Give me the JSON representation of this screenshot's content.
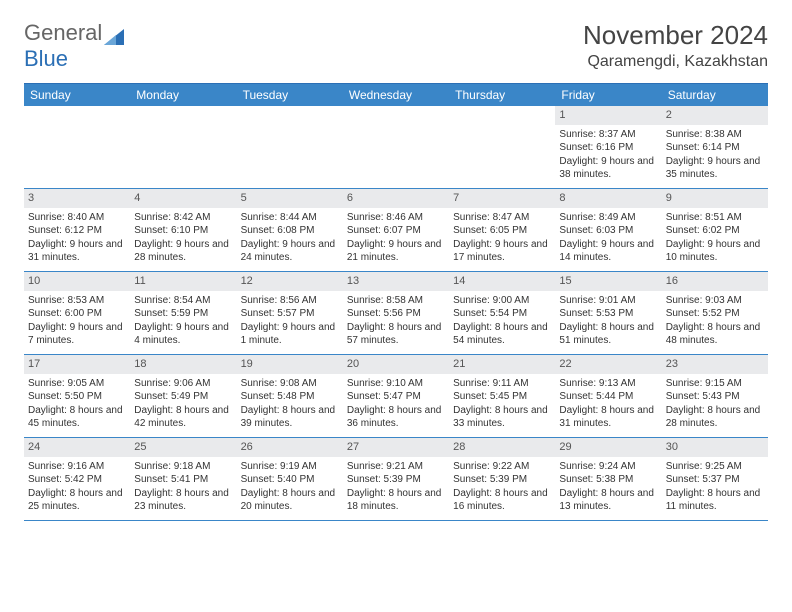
{
  "logo": {
    "part1": "General",
    "part2": "Blue"
  },
  "title": "November 2024",
  "subtitle": "Qaramengdi, Kazakhstan",
  "colors": {
    "header_bg": "#3a86c8",
    "header_text": "#ffffff",
    "border": "#3a86c8",
    "daynum_bg": "#e9eaec",
    "text": "#333333",
    "logo_blue": "#2b6fb5",
    "logo_gray": "#666666",
    "background": "#ffffff"
  },
  "day_headers": [
    "Sunday",
    "Monday",
    "Tuesday",
    "Wednesday",
    "Thursday",
    "Friday",
    "Saturday"
  ],
  "weeks": [
    [
      {},
      {},
      {},
      {},
      {},
      {
        "n": "1",
        "sr": "8:37 AM",
        "ss": "6:16 PM",
        "dl": "9 hours and 38 minutes."
      },
      {
        "n": "2",
        "sr": "8:38 AM",
        "ss": "6:14 PM",
        "dl": "9 hours and 35 minutes."
      }
    ],
    [
      {
        "n": "3",
        "sr": "8:40 AM",
        "ss": "6:12 PM",
        "dl": "9 hours and 31 minutes."
      },
      {
        "n": "4",
        "sr": "8:42 AM",
        "ss": "6:10 PM",
        "dl": "9 hours and 28 minutes."
      },
      {
        "n": "5",
        "sr": "8:44 AM",
        "ss": "6:08 PM",
        "dl": "9 hours and 24 minutes."
      },
      {
        "n": "6",
        "sr": "8:46 AM",
        "ss": "6:07 PM",
        "dl": "9 hours and 21 minutes."
      },
      {
        "n": "7",
        "sr": "8:47 AM",
        "ss": "6:05 PM",
        "dl": "9 hours and 17 minutes."
      },
      {
        "n": "8",
        "sr": "8:49 AM",
        "ss": "6:03 PM",
        "dl": "9 hours and 14 minutes."
      },
      {
        "n": "9",
        "sr": "8:51 AM",
        "ss": "6:02 PM",
        "dl": "9 hours and 10 minutes."
      }
    ],
    [
      {
        "n": "10",
        "sr": "8:53 AM",
        "ss": "6:00 PM",
        "dl": "9 hours and 7 minutes."
      },
      {
        "n": "11",
        "sr": "8:54 AM",
        "ss": "5:59 PM",
        "dl": "9 hours and 4 minutes."
      },
      {
        "n": "12",
        "sr": "8:56 AM",
        "ss": "5:57 PM",
        "dl": "9 hours and 1 minute."
      },
      {
        "n": "13",
        "sr": "8:58 AM",
        "ss": "5:56 PM",
        "dl": "8 hours and 57 minutes."
      },
      {
        "n": "14",
        "sr": "9:00 AM",
        "ss": "5:54 PM",
        "dl": "8 hours and 54 minutes."
      },
      {
        "n": "15",
        "sr": "9:01 AM",
        "ss": "5:53 PM",
        "dl": "8 hours and 51 minutes."
      },
      {
        "n": "16",
        "sr": "9:03 AM",
        "ss": "5:52 PM",
        "dl": "8 hours and 48 minutes."
      }
    ],
    [
      {
        "n": "17",
        "sr": "9:05 AM",
        "ss": "5:50 PM",
        "dl": "8 hours and 45 minutes."
      },
      {
        "n": "18",
        "sr": "9:06 AM",
        "ss": "5:49 PM",
        "dl": "8 hours and 42 minutes."
      },
      {
        "n": "19",
        "sr": "9:08 AM",
        "ss": "5:48 PM",
        "dl": "8 hours and 39 minutes."
      },
      {
        "n": "20",
        "sr": "9:10 AM",
        "ss": "5:47 PM",
        "dl": "8 hours and 36 minutes."
      },
      {
        "n": "21",
        "sr": "9:11 AM",
        "ss": "5:45 PM",
        "dl": "8 hours and 33 minutes."
      },
      {
        "n": "22",
        "sr": "9:13 AM",
        "ss": "5:44 PM",
        "dl": "8 hours and 31 minutes."
      },
      {
        "n": "23",
        "sr": "9:15 AM",
        "ss": "5:43 PM",
        "dl": "8 hours and 28 minutes."
      }
    ],
    [
      {
        "n": "24",
        "sr": "9:16 AM",
        "ss": "5:42 PM",
        "dl": "8 hours and 25 minutes."
      },
      {
        "n": "25",
        "sr": "9:18 AM",
        "ss": "5:41 PM",
        "dl": "8 hours and 23 minutes."
      },
      {
        "n": "26",
        "sr": "9:19 AM",
        "ss": "5:40 PM",
        "dl": "8 hours and 20 minutes."
      },
      {
        "n": "27",
        "sr": "9:21 AM",
        "ss": "5:39 PM",
        "dl": "8 hours and 18 minutes."
      },
      {
        "n": "28",
        "sr": "9:22 AM",
        "ss": "5:39 PM",
        "dl": "8 hours and 16 minutes."
      },
      {
        "n": "29",
        "sr": "9:24 AM",
        "ss": "5:38 PM",
        "dl": "8 hours and 13 minutes."
      },
      {
        "n": "30",
        "sr": "9:25 AM",
        "ss": "5:37 PM",
        "dl": "8 hours and 11 minutes."
      }
    ]
  ],
  "labels": {
    "sunrise": "Sunrise: ",
    "sunset": "Sunset: ",
    "daylight": "Daylight: "
  }
}
